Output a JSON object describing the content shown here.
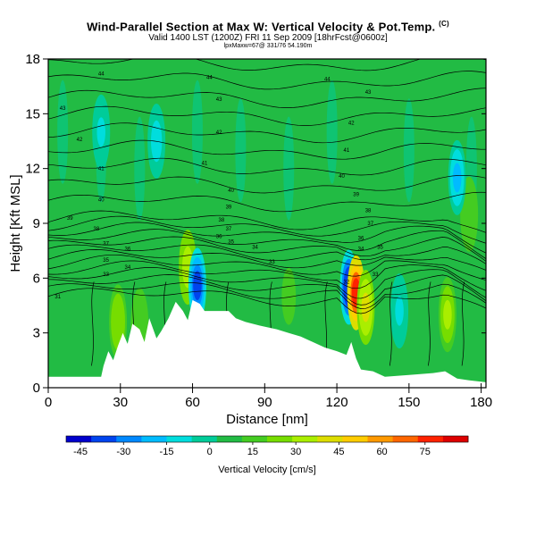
{
  "header": {
    "title": "Wind-Parallel Section at Max W: Vertical Velocity & Pot.Temp.",
    "title_mark": "(C)",
    "subtitle": "Valid 1400 LST (1200Z) FRI 11 Sep 2009 [18hrFcst@0600z]",
    "subtitle2": "lpxMaxw=67@ 331/76 54.190m"
  },
  "chart_data": {
    "type": "heatmap",
    "xlabel": "Distance [nm]",
    "ylabel": "Height [Kft MSL]",
    "xlim": [
      0,
      182
    ],
    "ylim": [
      0,
      18
    ],
    "x_ticks": [
      "0",
      "30",
      "60",
      "90",
      "120",
      "150",
      "180"
    ],
    "y_ticks": [
      "0",
      "3",
      "6",
      "9",
      "12",
      "15",
      "18"
    ],
    "colorbar": {
      "label": "Vertical Velocity [cm/s]",
      "ticks": [
        "-45",
        "-30",
        "-15",
        "0",
        "15",
        "30",
        "45",
        "60",
        "75"
      ],
      "range": [
        -50,
        90
      ],
      "colors": [
        "#0000cc",
        "#0044ee",
        "#0088ff",
        "#00bbff",
        "#00dddd",
        "#00cc99",
        "#22bb44",
        "#44cc22",
        "#77dd00",
        "#aaee00",
        "#dddd00",
        "#ffcc00",
        "#ff9900",
        "#ff6600",
        "#ff2200",
        "#dd0000"
      ]
    },
    "terrain_kft": [
      [
        0,
        0.6
      ],
      [
        22,
        0.6
      ],
      [
        23,
        1.2
      ],
      [
        25,
        2.0
      ],
      [
        27,
        1.5
      ],
      [
        29,
        2.3
      ],
      [
        31,
        3.0
      ],
      [
        33,
        2.4
      ],
      [
        35,
        3.5
      ],
      [
        38,
        3.2
      ],
      [
        40,
        2.5
      ],
      [
        42,
        3.8
      ],
      [
        45,
        2.7
      ],
      [
        47,
        3.1
      ],
      [
        50,
        3.8
      ],
      [
        53,
        4.7
      ],
      [
        56,
        4.2
      ],
      [
        58,
        3.7
      ],
      [
        60,
        4.8
      ],
      [
        63,
        4.6
      ],
      [
        65,
        4.2
      ],
      [
        70,
        4.2
      ],
      [
        75,
        4.2
      ],
      [
        78,
        3.8
      ],
      [
        82,
        3.6
      ],
      [
        88,
        3.4
      ],
      [
        95,
        3.2
      ],
      [
        100,
        3.0
      ],
      [
        105,
        2.8
      ],
      [
        110,
        2.5
      ],
      [
        115,
        2.2
      ],
      [
        120,
        2.0
      ],
      [
        124,
        1.8
      ],
      [
        126,
        2.5
      ],
      [
        128,
        1.6
      ],
      [
        130,
        1.0
      ],
      [
        135,
        0.9
      ],
      [
        140,
        0.6
      ],
      [
        150,
        0.7
      ],
      [
        160,
        0.8
      ],
      [
        165,
        0.9
      ],
      [
        170,
        0.5
      ],
      [
        175,
        0.4
      ],
      [
        182,
        0.3
      ]
    ],
    "updraft_features": [
      {
        "x": 29,
        "y": 3.6,
        "w": 32
      },
      {
        "x": 38,
        "y": 3.4,
        "w": 20
      },
      {
        "x": 58,
        "y": 6.6,
        "w": 38
      },
      {
        "x": 62,
        "y": 5.6,
        "w": -44
      },
      {
        "x": 100,
        "y": 5.0,
        "w": 14
      },
      {
        "x": 125,
        "y": 5.5,
        "w": -48
      },
      {
        "x": 128,
        "y": 5.2,
        "w": 86
      },
      {
        "x": 132,
        "y": 4.4,
        "w": 44
      },
      {
        "x": 146,
        "y": 4.2,
        "w": -10
      },
      {
        "x": 166,
        "y": 4.0,
        "w": 36
      },
      {
        "x": 175,
        "y": 9.5,
        "w": 22
      },
      {
        "x": 170,
        "y": 11.5,
        "w": -20
      },
      {
        "x": 45,
        "y": 13.5,
        "w": -14
      },
      {
        "x": 22,
        "y": 14.0,
        "w": -10
      }
    ],
    "isentrope_labels": [
      {
        "x": 22,
        "y": 17.2,
        "text": "44"
      },
      {
        "x": 67,
        "y": 17.0,
        "text": "44"
      },
      {
        "x": 116,
        "y": 16.9,
        "text": "44"
      },
      {
        "x": 6,
        "y": 15.3,
        "text": "43"
      },
      {
        "x": 71,
        "y": 15.8,
        "text": "43"
      },
      {
        "x": 133,
        "y": 16.2,
        "text": "43"
      },
      {
        "x": 13,
        "y": 13.6,
        "text": "42"
      },
      {
        "x": 71,
        "y": 14.0,
        "text": "42"
      },
      {
        "x": 126,
        "y": 14.5,
        "text": "42"
      },
      {
        "x": 22,
        "y": 12.0,
        "text": "41"
      },
      {
        "x": 65,
        "y": 12.3,
        "text": "41"
      },
      {
        "x": 124,
        "y": 13.0,
        "text": "41"
      },
      {
        "x": 22,
        "y": 10.3,
        "text": "40"
      },
      {
        "x": 76,
        "y": 10.8,
        "text": "40"
      },
      {
        "x": 122,
        "y": 11.6,
        "text": "40"
      },
      {
        "x": 9,
        "y": 9.3,
        "text": "39"
      },
      {
        "x": 75,
        "y": 9.9,
        "text": "39"
      },
      {
        "x": 128,
        "y": 10.6,
        "text": "39"
      },
      {
        "x": 20,
        "y": 8.7,
        "text": "38"
      },
      {
        "x": 72,
        "y": 9.2,
        "text": "38"
      },
      {
        "x": 133,
        "y": 9.7,
        "text": "38"
      },
      {
        "x": 24,
        "y": 7.9,
        "text": "37"
      },
      {
        "x": 75,
        "y": 8.7,
        "text": "37"
      },
      {
        "x": 134,
        "y": 9.0,
        "text": "37"
      },
      {
        "x": 33,
        "y": 7.6,
        "text": "36"
      },
      {
        "x": 71,
        "y": 8.3,
        "text": "36"
      },
      {
        "x": 130,
        "y": 8.2,
        "text": "36"
      },
      {
        "x": 24,
        "y": 7.0,
        "text": "35"
      },
      {
        "x": 76,
        "y": 8.0,
        "text": "35"
      },
      {
        "x": 138,
        "y": 7.7,
        "text": "35"
      },
      {
        "x": 33,
        "y": 6.6,
        "text": "34"
      },
      {
        "x": 86,
        "y": 7.7,
        "text": "34"
      },
      {
        "x": 130,
        "y": 7.6,
        "text": "34"
      },
      {
        "x": 24,
        "y": 6.2,
        "text": "33"
      },
      {
        "x": 93,
        "y": 6.9,
        "text": "33"
      },
      {
        "x": 136,
        "y": 6.2,
        "text": "33"
      },
      {
        "x": 4,
        "y": 5.0,
        "text": "31"
      },
      {
        "x": 124,
        "y": 5.8,
        "text": "32"
      }
    ]
  }
}
